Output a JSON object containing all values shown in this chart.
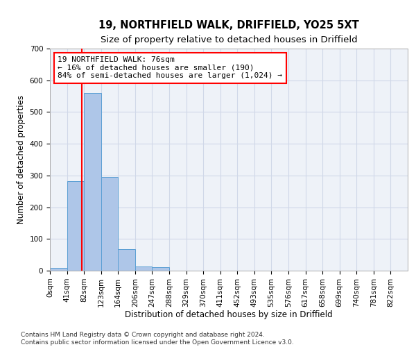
{
  "title_line1": "19, NORTHFIELD WALK, DRIFFIELD, YO25 5XT",
  "title_line2": "Size of property relative to detached houses in Driffield",
  "xlabel": "Distribution of detached houses by size in Driffield",
  "ylabel": "Number of detached properties",
  "bin_labels": [
    "0sqm",
    "41sqm",
    "82sqm",
    "123sqm",
    "164sqm",
    "206sqm",
    "247sqm",
    "288sqm",
    "329sqm",
    "370sqm",
    "411sqm",
    "452sqm",
    "493sqm",
    "535sqm",
    "576sqm",
    "617sqm",
    "658sqm",
    "699sqm",
    "740sqm",
    "781sqm",
    "822sqm"
  ],
  "bar_values": [
    8,
    283,
    560,
    295,
    68,
    13,
    10,
    0,
    0,
    0,
    0,
    0,
    0,
    0,
    0,
    0,
    0,
    0,
    0,
    0
  ],
  "bar_color": "#aec6e8",
  "bar_edge_color": "#5a9fd4",
  "property_line_x": 76,
  "bin_width": 41,
  "annotation_text": "19 NORTHFIELD WALK: 76sqm\n← 16% of detached houses are smaller (190)\n84% of semi-detached houses are larger (1,024) →",
  "annotation_box_color": "white",
  "annotation_box_edge_color": "red",
  "vline_color": "red",
  "ylim": [
    0,
    700
  ],
  "yticks": [
    0,
    100,
    200,
    300,
    400,
    500,
    600,
    700
  ],
  "grid_color": "#d0d8e8",
  "background_color": "#eef2f8",
  "footer_line1": "Contains HM Land Registry data © Crown copyright and database right 2024.",
  "footer_line2": "Contains public sector information licensed under the Open Government Licence v3.0.",
  "title_fontsize": 10.5,
  "subtitle_fontsize": 9.5,
  "axis_label_fontsize": 8.5,
  "tick_fontsize": 7.5,
  "annotation_fontsize": 8,
  "footer_fontsize": 6.5
}
